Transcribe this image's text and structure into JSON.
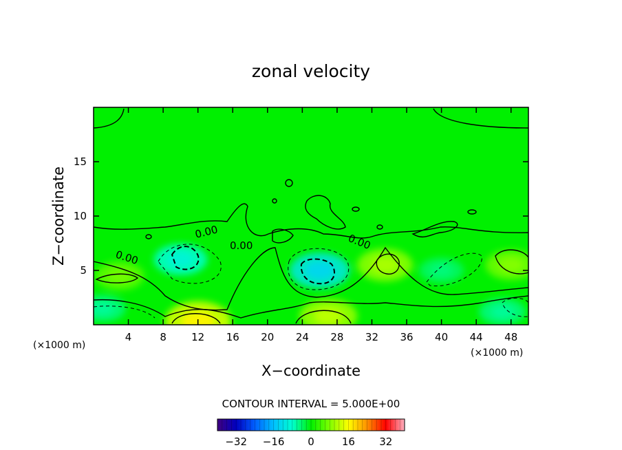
{
  "chart_data": {
    "type": "heatmap",
    "title": "zonal velocity",
    "xlabel": "X−coordinate",
    "ylabel": "Z−coordinate",
    "x_unit_left": "(×1000 m)",
    "x_unit_right": "(×1000 m)",
    "xlim": [
      0,
      50
    ],
    "ylim": [
      0,
      20
    ],
    "x_ticks": [
      4,
      8,
      12,
      16,
      20,
      24,
      28,
      32,
      36,
      40,
      44,
      48
    ],
    "x_tick_labels": [
      "4",
      "8",
      "12",
      "16",
      "20",
      "24",
      "28",
      "32",
      "36",
      "40",
      "44",
      "48"
    ],
    "y_ticks": [
      5,
      10,
      15
    ],
    "y_tick_labels": [
      "5",
      "10",
      "15"
    ],
    "contour_labels": [
      "0.00",
      "0.00",
      "0.00",
      "0.00"
    ],
    "contour_interval_text": "CONTOUR INTERVAL = 5.000E+00",
    "colorbar": {
      "range": [
        -40,
        40
      ],
      "ticks": [
        -32,
        -16,
        0,
        16,
        32
      ],
      "tick_labels": [
        "−32",
        "−16",
        "0",
        "16",
        "32"
      ]
    },
    "field_features": [
      {
        "x": 10,
        "z": 6,
        "u": -8
      },
      {
        "x": 26,
        "z": 5,
        "u": -11
      },
      {
        "x": 12,
        "z": 0.3,
        "u": 14
      },
      {
        "x": 27,
        "z": 0.8,
        "u": 10
      },
      {
        "x": 33.5,
        "z": 5.5,
        "u": 9
      },
      {
        "x": 48,
        "z": 5.5,
        "u": 7
      },
      {
        "x": 3,
        "z": 4.5,
        "u": 6
      },
      {
        "x": 47,
        "z": 1.2,
        "u": -5
      },
      {
        "x": 1,
        "z": 1.5,
        "u": -5
      },
      {
        "x": 40,
        "z": 5,
        "u": -4
      }
    ],
    "colors": {
      "background": "#00f000",
      "palette": [
        "#400080",
        "#0000c0",
        "#0060ff",
        "#00c0ff",
        "#00ffd0",
        "#00f000",
        "#80ff00",
        "#ffff00",
        "#ff9000",
        "#ff0000",
        "#ffb0c0"
      ]
    }
  }
}
